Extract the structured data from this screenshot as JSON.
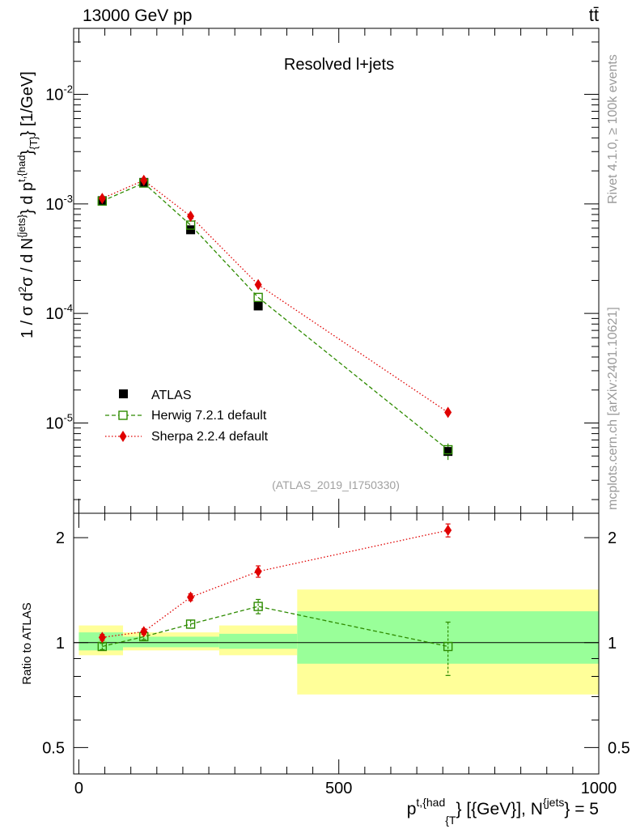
{
  "header": {
    "left": "13000 GeV pp",
    "right": "tt̄"
  },
  "side": {
    "rivet": "Rivet 4.1.0, ≥ 100k events",
    "mcplots": "mcplots.cern.ch [arXiv:2401.10621]"
  },
  "chart_data": [
    {
      "type": "line",
      "title": "Resolved l+jets",
      "analysis_tag": "(ATLAS_2019_I1750330)",
      "xlabel": "p^{t,{had}}_{T} [{GeV}], N^{jets} = 5",
      "ylabel": "1 / σ d²σ / d N^{jets} d p^{t,{had}}_{T} [1/GeV]",
      "ylabel_parts": {
        "pre": "1 / σ d",
        "sq": "2",
        "mid": "σ / d N",
        "sup1": "{jets}",
        "mid2": "} d p",
        "sup2": "t,{had",
        "mid3": "}",
        "sub": "{T}",
        "post": "} [1/GeV]"
      },
      "xlabel_parts": {
        "p": "p",
        "sup1": "t,{had",
        "sub": "{T",
        "mid": "} [{GeV}], N",
        "sup2": "{jets",
        "end": "} = 5"
      },
      "yscale": "log",
      "xlim": [
        -10,
        1000
      ],
      "ylim": [
        1.5e-06,
        0.04
      ],
      "y_tick_labels": [
        {
          "value": 1e-05,
          "base": "10",
          "exp": "-5"
        },
        {
          "value": 0.0001,
          "base": "10",
          "exp": "-4"
        },
        {
          "value": 0.001,
          "base": "10",
          "exp": "-3"
        },
        {
          "value": 0.01,
          "base": "10",
          "exp": "-2"
        }
      ],
      "x": [
        45,
        125,
        215,
        345,
        710
      ],
      "series": [
        {
          "name": "ATLAS",
          "color": "#000000",
          "marker": "square",
          "values": [
            0.00107,
            0.00157,
            0.00058,
            0.000117,
            5.5e-06
          ]
        },
        {
          "name": "Herwig 7.2.1 default",
          "color": "#2e8b00",
          "marker": "open-square",
          "line": "dashed",
          "values": [
            0.00106,
            0.00155,
            0.00064,
            0.00014,
            5.7e-06
          ]
        },
        {
          "name": "Sherpa 2.2.4 default",
          "color": "#e00000",
          "marker": "diamond",
          "line": "dotted",
          "values": [
            0.00112,
            0.00164,
            0.00077,
            0.000183,
            1.25e-05
          ]
        }
      ],
      "legend": "center-left"
    },
    {
      "type": "line",
      "ylabel": "Ratio to ATLAS",
      "yscale": "log",
      "ylim": [
        0.42,
        2.35
      ],
      "y_ticks": [
        0.5,
        1,
        2
      ],
      "y_tick_labels": [
        "0.5",
        "1",
        "2"
      ],
      "xlim": [
        -10,
        1000
      ],
      "x_ticks": [
        0,
        500,
        1000
      ],
      "x_tick_labels": [
        "0",
        "500",
        "1000"
      ],
      "bins": [
        {
          "x0": 0,
          "x1": 85,
          "green": [
            0.95,
            1.07
          ],
          "yellow": [
            0.92,
            1.12
          ]
        },
        {
          "x0": 85,
          "x1": 270,
          "green": [
            0.97,
            1.04
          ],
          "yellow": [
            0.95,
            1.07
          ]
        },
        {
          "x0": 270,
          "x1": 420,
          "green": [
            0.96,
            1.06
          ],
          "yellow": [
            0.92,
            1.12
          ]
        },
        {
          "x0": 420,
          "x1": 1000,
          "green": [
            0.87,
            1.23
          ],
          "yellow": [
            0.71,
            1.42
          ]
        }
      ],
      "x": [
        45,
        125,
        215,
        345,
        710
      ],
      "series": [
        {
          "name": "Herwig 7.2.1 default",
          "color": "#2e8b00",
          "values": [
            0.975,
            1.04,
            1.13,
            1.27,
            0.975
          ],
          "err": [
            0.02,
            0.02,
            0.03,
            0.06,
            0.17
          ]
        },
        {
          "name": "Sherpa 2.2.4 default",
          "color": "#e00000",
          "values": [
            1.035,
            1.075,
            1.35,
            1.6,
            2.1
          ],
          "err": [
            0.02,
            0.02,
            0.03,
            0.06,
            0.09
          ]
        }
      ]
    }
  ]
}
